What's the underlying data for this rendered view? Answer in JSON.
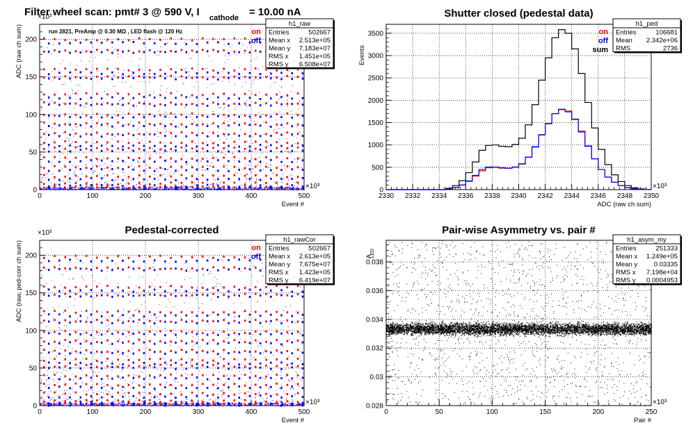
{
  "page_title": {
    "main": "Filter wheel scan: pmt#   3 @   590 V, I",
    "sub": "cathode",
    "tail": "= 10.00 nA"
  },
  "colors": {
    "on": "#ff0000",
    "off": "#0000ff",
    "sum": "#000000"
  },
  "chart_data": [
    {
      "id": "raw",
      "type": "scatter",
      "title": "",
      "annotation": "run 2821, PreAmp @ 0.30 MΩ , LED flash @  120 Hz",
      "xlabel": "Event #",
      "ylabel": "ADC (raw ch sum)",
      "x_exponent": "×10³",
      "y_exponent": "×10³",
      "xlim": [
        0,
        500
      ],
      "ylim": [
        0,
        220
      ],
      "xticks": [
        0,
        100,
        200,
        300,
        400,
        500
      ],
      "yticks": [
        0,
        50,
        100,
        150,
        200
      ],
      "grid": true,
      "legend": [
        {
          "name": "on",
          "color": "#ff0000"
        },
        {
          "name": "off",
          "color": "#0000ff"
        }
      ],
      "series": [
        {
          "name": "on",
          "levels": [
            200,
            185,
            160,
            150,
            127,
            115,
            100,
            88,
            75,
            63,
            55,
            42,
            30,
            18,
            8,
            3
          ],
          "step_x": 20,
          "start_x": 8
        },
        {
          "name": "off",
          "levels": [
            195,
            183,
            155,
            148,
            122,
            113,
            97,
            85,
            72,
            58,
            52,
            38,
            26,
            14,
            5,
            2
          ],
          "step_x": 20,
          "start_x": 17
        }
      ],
      "stats": {
        "name": "h1_raw",
        "rows": [
          [
            "Entries",
            "502667"
          ],
          [
            "Mean x",
            "2.513e+05"
          ],
          [
            "Mean y",
            "7.183e+07"
          ],
          [
            "RMS x",
            "1.451e+05"
          ],
          [
            "RMS y",
            "6.508e+07"
          ]
        ]
      }
    },
    {
      "id": "ped",
      "type": "line",
      "title": "Shutter closed (pedestal data)",
      "xlabel": "ADC (raw ch sum)",
      "ylabel": "Events",
      "x_exponent": "×10³",
      "xlim": [
        2330,
        2350
      ],
      "ylim": [
        0,
        3700
      ],
      "xticks": [
        2330,
        2332,
        2334,
        2336,
        2338,
        2340,
        2342,
        2344,
        2346,
        2348,
        2350
      ],
      "yticks": [
        0,
        500,
        1000,
        1500,
        2000,
        2500,
        3000,
        3500
      ],
      "grid": true,
      "legend": [
        {
          "name": "on",
          "color": "#ff0000"
        },
        {
          "name": "off",
          "color": "#0000ff"
        },
        {
          "name": "sum",
          "color": "#000000"
        }
      ],
      "series": [
        {
          "name": "sum",
          "x": [
            2330,
            2334,
            2334.5,
            2335,
            2335.5,
            2336,
            2336.5,
            2337,
            2337.5,
            2338,
            2338.5,
            2339,
            2339.5,
            2340,
            2340.5,
            2341,
            2341.5,
            2342,
            2342.5,
            2343,
            2343.5,
            2344,
            2344.5,
            2345,
            2345.5,
            2346,
            2346.5,
            2347,
            2347.5,
            2348,
            2348.5,
            2349,
            2349.5,
            2350
          ],
          "y": [
            0,
            0,
            30,
            90,
            200,
            380,
            620,
            880,
            990,
            1000,
            970,
            960,
            1010,
            1150,
            1450,
            1900,
            2450,
            2950,
            3400,
            3580,
            3500,
            3150,
            2600,
            1950,
            1380,
            900,
            560,
            330,
            180,
            90,
            40,
            15,
            5,
            0
          ]
        },
        {
          "name": "on",
          "x": [
            2330,
            2334,
            2334.5,
            2335,
            2335.5,
            2336,
            2336.5,
            2337,
            2337.5,
            2338,
            2338.5,
            2339,
            2339.5,
            2340,
            2340.5,
            2341,
            2341.5,
            2342,
            2342.5,
            2343,
            2343.5,
            2344,
            2344.5,
            2345,
            2345.5,
            2346,
            2346.5,
            2347,
            2347.5,
            2348,
            2348.5,
            2349,
            2349.5,
            2350
          ],
          "y": [
            0,
            0,
            12,
            45,
            100,
            185,
            300,
            420,
            490,
            500,
            480,
            475,
            500,
            570,
            720,
            950,
            1220,
            1470,
            1700,
            1790,
            1760,
            1580,
            1310,
            980,
            690,
            450,
            280,
            165,
            90,
            45,
            20,
            8,
            3,
            0
          ]
        },
        {
          "name": "off",
          "x": [
            2330,
            2334,
            2334.5,
            2335,
            2335.5,
            2336,
            2336.5,
            2337,
            2337.5,
            2338,
            2338.5,
            2339,
            2339.5,
            2340,
            2340.5,
            2341,
            2341.5,
            2342,
            2342.5,
            2343,
            2343.5,
            2344,
            2344.5,
            2345,
            2345.5,
            2346,
            2346.5,
            2347,
            2347.5,
            2348,
            2348.5,
            2349,
            2349.5,
            2350
          ],
          "y": [
            0,
            0,
            14,
            48,
            105,
            195,
            320,
            450,
            505,
            505,
            490,
            480,
            505,
            580,
            730,
            960,
            1230,
            1480,
            1700,
            1800,
            1740,
            1570,
            1290,
            970,
            690,
            450,
            280,
            165,
            90,
            45,
            20,
            7,
            2,
            0
          ]
        }
      ],
      "stats": {
        "name": "h1_ped",
        "rows": [
          [
            "Entries",
            "106681"
          ],
          [
            "Mean",
            "2.342e+06"
          ],
          [
            "RMS",
            "2736"
          ]
        ]
      }
    },
    {
      "id": "rawCor",
      "type": "scatter",
      "title": "Pedestal-corrected",
      "xlabel": "Event #",
      "ylabel": "ADC (raw, ped-corr ch sum)",
      "x_exponent": "×10³",
      "y_exponent": "×10³",
      "xlim": [
        0,
        500
      ],
      "ylim": [
        0,
        220
      ],
      "xticks": [
        0,
        100,
        200,
        300,
        400,
        500
      ],
      "yticks": [
        0,
        50,
        100,
        150,
        200
      ],
      "grid": true,
      "legend": [
        {
          "name": "on",
          "color": "#ff0000"
        },
        {
          "name": "off",
          "color": "#0000ff"
        }
      ],
      "series": [
        {
          "name": "on",
          "levels": [
            198,
            183,
            158,
            148,
            125,
            113,
            98,
            86,
            73,
            61,
            53,
            40,
            28,
            16,
            6,
            2
          ],
          "step_x": 20,
          "start_x": 8
        },
        {
          "name": "off",
          "levels": [
            193,
            181,
            153,
            146,
            120,
            111,
            95,
            83,
            70,
            56,
            50,
            36,
            24,
            12,
            4,
            1
          ],
          "step_x": 20,
          "start_x": 17
        }
      ],
      "stats": {
        "name": "h1_rawCor",
        "rows": [
          [
            "Entries",
            "502667"
          ],
          [
            "Mean x",
            "2.613e+05"
          ],
          [
            "Mean y",
            "7.675e+07"
          ],
          [
            "RMS x",
            "1.423e+05"
          ],
          [
            "RMS y",
            "6.419e+07"
          ]
        ]
      }
    },
    {
      "id": "asym",
      "type": "scatter",
      "title": "Pair-wise Asymmetry vs. pair #",
      "xlabel": "Pair #",
      "ylabel": "A",
      "ylabel_sub": "LED",
      "x_exponent": "×10³",
      "xlim": [
        0,
        250
      ],
      "ylim": [
        0.028,
        0.0395
      ],
      "xticks": [
        0,
        50,
        100,
        150,
        200,
        250
      ],
      "yticks": [
        0.028,
        0.03,
        0.032,
        0.034,
        0.036,
        0.038
      ],
      "ytick_labels": [
        "0.028",
        "0.03",
        "0.032",
        "0.034",
        "0.036",
        "0.038"
      ],
      "grid": true,
      "band_center": 0.03335,
      "band_halfwidth": 0.0006,
      "stats": {
        "name": "h1_asym_my",
        "rows": [
          [
            "Entries",
            "251333"
          ],
          [
            "Mean x",
            "1.249e+05"
          ],
          [
            "Mean y",
            "0.03335"
          ],
          [
            "RMS x",
            "7.198e+04"
          ],
          [
            "RMS y",
            "0.0004953"
          ]
        ]
      }
    }
  ]
}
